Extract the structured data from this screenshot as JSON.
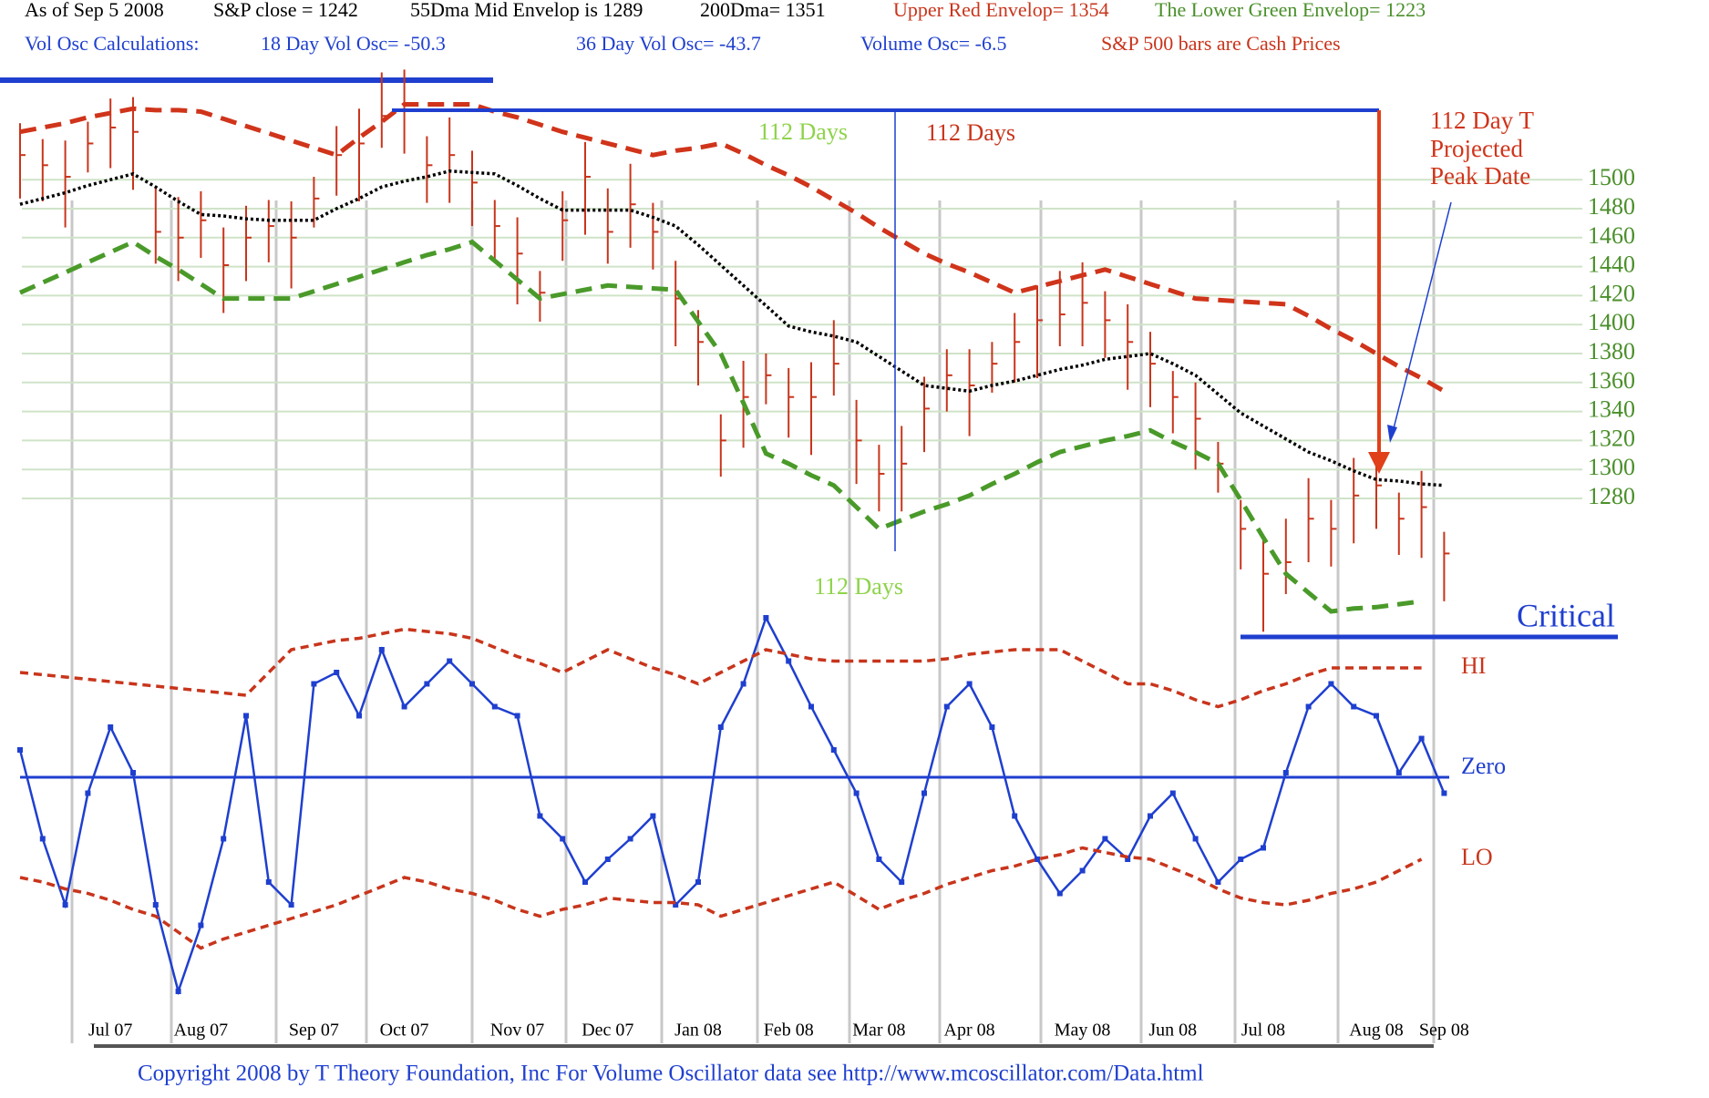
{
  "header": {
    "line1": [
      "As of Sep 5  2008",
      "S&P close = 1242",
      "55Dma Mid Envelop is  1289",
      "200Dma=  1351",
      "Upper Red Envelop= 1354",
      "The Lower Green Envelop=  1223"
    ],
    "line2": [
      "Vol Osc Calculations:",
      "18 Day Vol Osc= -50.3",
      "36 Day Vol Osc= -43.7",
      "Volume Osc= -6.5",
      "S&P 500 bars are Cash Prices"
    ]
  },
  "annotations": {
    "days": [
      "112 Days",
      "112 Days",
      "112 Days"
    ],
    "peak": [
      "112 Day T",
      "Projected",
      "Peak Date"
    ],
    "critical": "Critical"
  },
  "copyright": "Copyright 2008 by T Theory Foundation, Inc  For Volume Oscillator data see http://www.mcoscillator.com/Data.html",
  "chart_data": [
    {
      "type": "hlc",
      "categories": [
        null,
        null,
        null,
        null,
        "Jul 07",
        null,
        null,
        null,
        "Aug 07",
        null,
        null,
        null,
        null,
        "Sep 07",
        null,
        null,
        null,
        "Oct 07",
        null,
        null,
        null,
        null,
        "Nov 07",
        null,
        null,
        null,
        "Dec 07",
        null,
        null,
        null,
        "Jan 08",
        null,
        null,
        null,
        "Feb 08",
        null,
        null,
        null,
        "Mar 08",
        null,
        null,
        null,
        "Apr 08",
        null,
        null,
        null,
        null,
        "May 08",
        null,
        null,
        null,
        "Jun 08",
        null,
        null,
        null,
        "Jul 08",
        null,
        null,
        null,
        null,
        "Aug 08",
        null,
        null,
        "Sep 08"
      ],
      "high": [
        1539,
        1528,
        1527,
        1540,
        1556,
        1557,
        1494,
        1488,
        1492,
        1467,
        1482,
        1486,
        1485,
        1502,
        1537,
        1549,
        1574,
        1576,
        1530,
        1543,
        1520,
        1486,
        1474,
        1437,
        1492,
        1526,
        1494,
        1511,
        1484,
        1444,
        1410,
        1338,
        1375,
        1380,
        1370,
        1374,
        1403,
        1348,
        1317,
        1330,
        1364,
        1383,
        1383,
        1388,
        1408,
        1427,
        1437,
        1443,
        1423,
        1414,
        1395,
        1368,
        1360,
        1319,
        1279,
        1252,
        1266,
        1294,
        1279,
        1308,
        1311,
        1284,
        1299,
        1257
      ],
      "low": [
        1487,
        1485,
        1467,
        1505,
        1508,
        1493,
        1442,
        1430,
        1446,
        1408,
        1430,
        1443,
        1425,
        1467,
        1489,
        1485,
        1522,
        1518,
        1484,
        1484,
        1468,
        1443,
        1414,
        1402,
        1444,
        1462,
        1442,
        1453,
        1438,
        1385,
        1358,
        1295,
        1315,
        1345,
        1322,
        1310,
        1351,
        1290,
        1271,
        1271,
        1312,
        1340,
        1323,
        1353,
        1360,
        1363,
        1385,
        1385,
        1377,
        1355,
        1343,
        1325,
        1300,
        1284,
        1231,
        1188,
        1214,
        1236,
        1233,
        1249,
        1259,
        1241,
        1239,
        1209
      ],
      "close": [
        1517,
        1510,
        1502,
        1525,
        1536,
        1533,
        1464,
        1460,
        1472,
        1441,
        1460,
        1468,
        1460,
        1487,
        1517,
        1525,
        1544,
        1548,
        1510,
        1517,
        1498,
        1468,
        1449,
        1422,
        1472,
        1502,
        1464,
        1483,
        1464,
        1418,
        1388,
        1320,
        1350,
        1365,
        1350,
        1350,
        1373,
        1320,
        1297,
        1304,
        1342,
        1365,
        1358,
        1373,
        1388,
        1403,
        1407,
        1415,
        1403,
        1388,
        1373,
        1350,
        1335,
        1304,
        1259,
        1228,
        1236,
        1266,
        1259,
        1282,
        1289,
        1266,
        1274,
        1242
      ],
      "color": "#c8351c",
      "series": [
        {
          "color": "#d0341a",
          "style": "dashed",
          "values": [
            1533,
            1536,
            1539,
            1543,
            1546,
            1549,
            1548,
            1548,
            1547,
            1542,
            1537,
            1532,
            1527,
            1522,
            1517,
            1529,
            1540,
            1552,
            1552,
            1552,
            1552,
            1547,
            1543,
            1538,
            1533,
            1529,
            1525,
            1521,
            1517,
            1520,
            1522,
            1525,
            1518,
            1510,
            1503,
            1495,
            1486,
            1477,
            1467,
            1458,
            1449,
            1442,
            1436,
            1429,
            1422,
            1426,
            1430,
            1434,
            1438,
            1433,
            1428,
            1423,
            1418,
            1417,
            1416,
            1415,
            1414,
            1406,
            1397,
            1389,
            1380,
            1371,
            1363,
            1354
          ]
        },
        {
          "color": "#000000",
          "style": "dotted",
          "values": [
            1483,
            1487,
            1491,
            1496,
            1500,
            1504,
            1495,
            1485,
            1476,
            1475,
            1473,
            1472,
            1472,
            1472,
            1480,
            1487,
            1495,
            1499,
            1502,
            1506,
            1505,
            1504,
            1496,
            1487,
            1479,
            1479,
            1479,
            1479,
            1474,
            1468,
            1455,
            1441,
            1427,
            1413,
            1399,
            1395,
            1392,
            1388,
            1378,
            1368,
            1358,
            1356,
            1354,
            1358,
            1361,
            1365,
            1369,
            1372,
            1376,
            1378,
            1380,
            1373,
            1365,
            1352,
            1339,
            1330,
            1321,
            1312,
            1306,
            1299,
            1293,
            1292,
            1290,
            1289
          ]
        },
        {
          "color": "#4a9a2a",
          "style": "dashed",
          "values": [
            1422,
            1429,
            1436,
            1443,
            1450,
            1457,
            1447,
            1438,
            1428,
            1418,
            1418,
            1418,
            1418,
            1423,
            1428,
            1433,
            1438,
            1443,
            1448,
            1452,
            1457,
            1444,
            1431,
            1418,
            1421,
            1424,
            1427,
            1426,
            1425,
            1424,
            1402,
            1380,
            1346,
            1311,
            1304,
            1296,
            1289,
            1274,
            1259,
            1265,
            1271,
            1276,
            1282,
            1290,
            1297,
            1305,
            1312,
            1316,
            1320,
            1323,
            1327,
            1319,
            1312,
            1304,
            1279,
            1253,
            1228,
            1215,
            1202,
            1204,
            1205,
            1207,
            1209,
            null
          ]
        }
      ],
      "ylim": [
        1180,
        1580
      ],
      "yticks": [
        1280,
        1300,
        1320,
        1340,
        1360,
        1380,
        1400,
        1420,
        1440,
        1460,
        1480,
        1500
      ],
      "grid": true
    },
    {
      "type": "oscillator",
      "ylim": [
        -110,
        75
      ],
      "yticks": [
        {
          "value": 0,
          "label": "Zero"
        }
      ],
      "series": [
        {
          "color": "#1f3fcf",
          "style": "solid",
          "values": [
            12,
            -27,
            -56,
            -7,
            22,
            2,
            -56,
            -94,
            -65,
            -27,
            27,
            -46,
            -56,
            41,
            46,
            27,
            56,
            31,
            41,
            51,
            41,
            31,
            27,
            -17,
            -27,
            -46,
            -36,
            -27,
            -17,
            -56,
            -46,
            22,
            41,
            70,
            51,
            31,
            12,
            -7,
            -36,
            -46,
            -7,
            31,
            41,
            22,
            -17,
            -36,
            -51,
            -41,
            -27,
            -36,
            -17,
            -7,
            -27,
            -46,
            -36,
            -31,
            2,
            31,
            41,
            31,
            27,
            2,
            17,
            -7
          ]
        },
        {
          "name": "HI",
          "color": "#c8351c",
          "style": "dashed",
          "values": [
            46,
            45,
            44,
            43,
            42,
            41,
            40,
            39,
            38,
            37,
            36,
            46,
            56,
            58,
            60,
            61,
            63,
            65,
            64,
            63,
            61,
            57,
            53,
            50,
            46,
            51,
            56,
            52,
            48,
            45,
            41,
            46,
            51,
            56,
            54,
            52,
            51,
            51,
            51,
            51,
            51,
            52,
            54,
            55,
            56,
            56,
            56,
            51,
            46,
            41,
            41,
            38,
            34,
            31,
            34,
            38,
            41,
            45,
            48,
            48,
            48,
            48,
            48,
            null
          ]
        },
        {
          "name": "LO",
          "color": "#c8351c",
          "style": "dashed",
          "values": [
            -44,
            -46,
            -49,
            -51,
            -54,
            -58,
            -61,
            -68,
            -75,
            -71,
            -68,
            -65,
            -62,
            -59,
            -56,
            -52,
            -48,
            -44,
            -46,
            -49,
            -51,
            -54,
            -58,
            -61,
            -58,
            -56,
            -53,
            -54,
            -55,
            -55,
            -56,
            -61,
            -58,
            -55,
            -52,
            -49,
            -46,
            -52,
            -58,
            -54,
            -51,
            -47,
            -44,
            -41,
            -39,
            -36,
            -34,
            -31,
            -33,
            -35,
            -36,
            -40,
            -44,
            -49,
            -53,
            -55,
            -56,
            -54,
            -51,
            -49,
            -46,
            -41,
            -36,
            null
          ]
        }
      ]
    }
  ]
}
